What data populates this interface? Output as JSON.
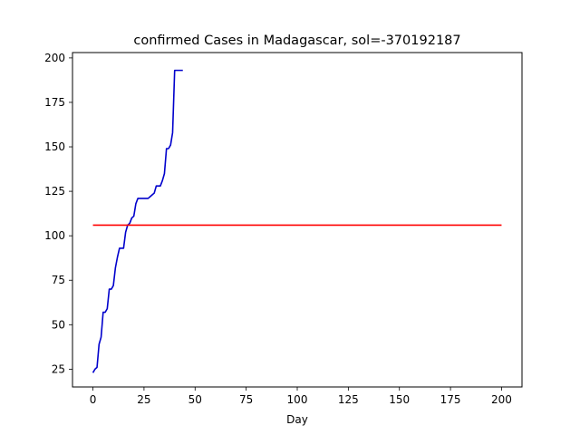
{
  "chart_data": {
    "type": "line",
    "title": "confirmed Cases in Madagascar, sol=-370192187",
    "xlabel": "Day",
    "ylabel": "",
    "xlim": [
      -10,
      210
    ],
    "ylim": [
      15,
      203
    ],
    "xticks": [
      0,
      25,
      50,
      75,
      100,
      125,
      150,
      175,
      200
    ],
    "yticks": [
      25,
      50,
      75,
      100,
      125,
      150,
      175,
      200
    ],
    "grid": false,
    "legend": "none",
    "series": [
      {
        "color": "#0000cc",
        "x": [
          0,
          1,
          2,
          3,
          4,
          5,
          6,
          7,
          8,
          9,
          10,
          11,
          12,
          13,
          14,
          15,
          16,
          17,
          18,
          19,
          20,
          21,
          22,
          23,
          24,
          25,
          26,
          27,
          28,
          29,
          30,
          31,
          32,
          33,
          34,
          35,
          36,
          37,
          38,
          39,
          40,
          41,
          42,
          43,
          44
        ],
        "y": [
          23,
          25,
          26,
          39,
          43,
          57,
          57,
          59,
          70,
          70,
          72,
          82,
          88,
          93,
          93,
          93,
          102,
          106,
          107,
          110,
          111,
          118,
          121,
          121,
          121,
          121,
          121,
          121,
          122,
          123,
          124,
          128,
          128,
          128,
          131,
          135,
          149,
          149,
          151,
          158,
          193,
          193,
          193,
          193,
          193
        ]
      },
      {
        "color": "#ff0000",
        "x": [
          0,
          200
        ],
        "y": [
          106,
          106
        ]
      }
    ]
  }
}
